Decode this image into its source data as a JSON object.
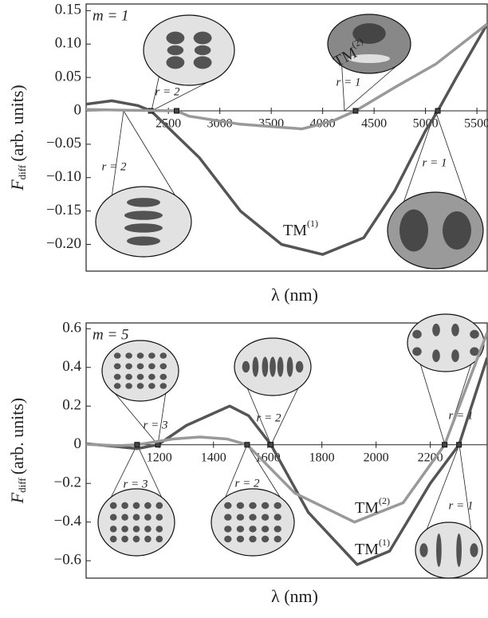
{
  "chart_data": [
    {
      "type": "line",
      "panel_label": "m = 1",
      "xlabel": "λ (nm)",
      "ylabel": "F",
      "ylabel_sub": "diff",
      "ylabel_rest": "(arb. units)",
      "xlim": [
        1700,
        5600
      ],
      "ylim": [
        -0.24,
        0.16
      ],
      "xticks": [
        2500,
        3000,
        3500,
        4000,
        4500,
        5000,
        5500
      ],
      "yticks": [
        0.15,
        {
          "value": 0.1,
          "label": "0.10"
        },
        0.05,
        0,
        {
          "value": -0.05,
          "label": "−0.05"
        },
        {
          "value": -0.1,
          "label": "−0.10"
        },
        {
          "value": -0.15,
          "label": "−0.15"
        },
        {
          "value": -0.2,
          "label": "−0.20"
        }
      ],
      "annotations": [
        "r = 2",
        "r = 1",
        "r = 2",
        "r = 1"
      ],
      "series": [
        {
          "name": "TM",
          "superscript": "(1)",
          "color": "#555555",
          "x": [
            1700,
            1950,
            2200,
            2330,
            2800,
            3200,
            3600,
            4000,
            4400,
            4700,
            5000,
            5120,
            5300,
            5600
          ],
          "values": [
            0.01,
            0.015,
            0.008,
            0,
            -0.07,
            -0.15,
            -0.2,
            -0.215,
            -0.19,
            -0.12,
            -0.03,
            0,
            0.05,
            0.13
          ]
        },
        {
          "name": "TM",
          "superscript": "(2)",
          "color": "#999999",
          "x": [
            1700,
            2100,
            2580,
            2700,
            3200,
            3800,
            4100,
            4320,
            4700,
            5100,
            5600
          ],
          "values": [
            0.002,
            0.001,
            0,
            -0.008,
            -0.02,
            -0.027,
            -0.015,
            0,
            0.035,
            0.07,
            0.13
          ]
        }
      ]
    },
    {
      "type": "line",
      "panel_label": "m = 5",
      "xlabel": "λ (nm)",
      "ylabel": "F",
      "ylabel_sub": "diff",
      "ylabel_rest": "(arb. units)",
      "xlim": [
        930,
        2410
      ],
      "ylim": [
        -0.69,
        0.63
      ],
      "xticks": [
        1200,
        1400,
        1600,
        1800,
        2000,
        2200
      ],
      "yticks": [
        0.6,
        0.4,
        0.2,
        0,
        {
          "value": -0.2,
          "label": "−0.2"
        },
        {
          "value": -0.4,
          "label": "−0.4"
        },
        {
          "value": -0.6,
          "label": "−0.6"
        }
      ],
      "annotations": [
        "r = 3",
        "r = 2",
        "r = 1",
        "r = 3",
        "r = 2",
        "r = 1"
      ],
      "series": [
        {
          "name": "TM",
          "superscript": "(1)",
          "color": "#555555",
          "x": [
            930,
            1050,
            1118,
            1195,
            1300,
            1460,
            1530,
            1612,
            1750,
            1930,
            2050,
            2200,
            2306,
            2410
          ],
          "values": [
            0.005,
            -0.01,
            -0.02,
            0,
            0.1,
            0.2,
            0.15,
            0,
            -0.35,
            -0.62,
            -0.55,
            -0.2,
            0,
            0.45
          ]
        },
        {
          "name": "TM",
          "superscript": "(2)",
          "color": "#999999",
          "x": [
            930,
            1050,
            1118,
            1250,
            1350,
            1450,
            1524,
            1700,
            1920,
            2100,
            2253,
            2410
          ],
          "values": [
            0.002,
            -0.005,
            0,
            0.03,
            0.04,
            0.03,
            0,
            -0.25,
            -0.4,
            -0.3,
            0,
            0.58
          ]
        }
      ]
    }
  ]
}
